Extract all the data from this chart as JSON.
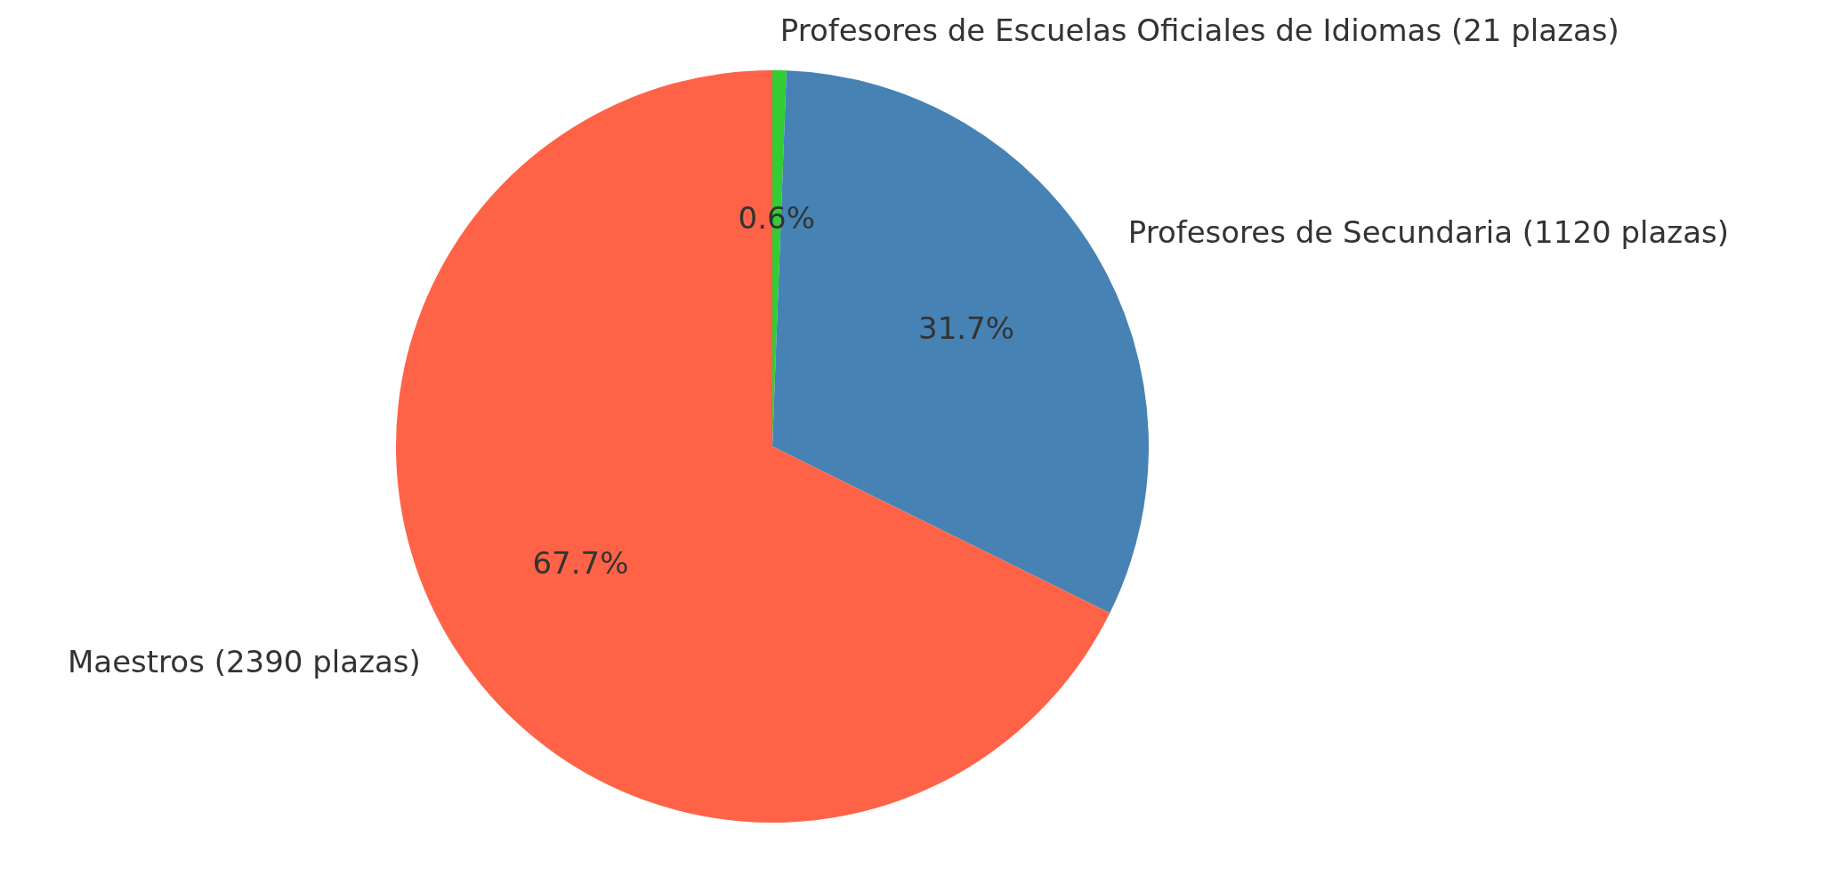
{
  "chart_data": {
    "type": "pie",
    "categories": [
      "Profesores de Escuelas Oficiales de Idiomas (21 plazas)",
      "Profesores de Secundaria (1120 plazas)",
      "Maestros (2390 plazas)"
    ],
    "values": [
      0.6,
      31.7,
      67.7
    ],
    "colors": [
      "#32cd32",
      "#4682b4",
      "#ff6347"
    ],
    "value_labels": [
      "0.6%",
      "31.7%",
      "67.7%"
    ],
    "legend": false
  }
}
